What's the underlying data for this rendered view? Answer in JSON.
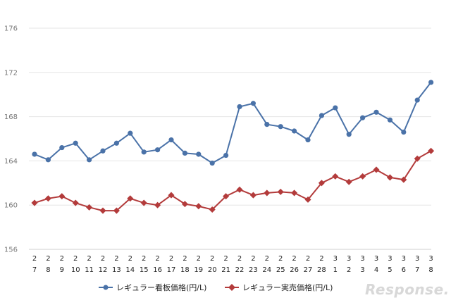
{
  "chart_data": {
    "type": "line",
    "title": "",
    "xlabel": "",
    "ylabel": "",
    "ylim": [
      156,
      176
    ],
    "yticks": [
      156,
      160,
      164,
      168,
      172,
      176
    ],
    "grid": "horizontal",
    "legend_position": "bottom",
    "categories": [
      {
        "month": "2",
        "day": "7"
      },
      {
        "month": "2",
        "day": "8"
      },
      {
        "month": "2",
        "day": "9"
      },
      {
        "month": "2",
        "day": "10"
      },
      {
        "month": "2",
        "day": "11"
      },
      {
        "month": "2",
        "day": "12"
      },
      {
        "month": "2",
        "day": "13"
      },
      {
        "month": "2",
        "day": "14"
      },
      {
        "month": "2",
        "day": "15"
      },
      {
        "month": "2",
        "day": "16"
      },
      {
        "month": "2",
        "day": "17"
      },
      {
        "month": "2",
        "day": "18"
      },
      {
        "month": "2",
        "day": "19"
      },
      {
        "month": "2",
        "day": "20"
      },
      {
        "month": "2",
        "day": "21"
      },
      {
        "month": "2",
        "day": "22"
      },
      {
        "month": "2",
        "day": "23"
      },
      {
        "month": "2",
        "day": "24"
      },
      {
        "month": "2",
        "day": "25"
      },
      {
        "month": "2",
        "day": "26"
      },
      {
        "month": "2",
        "day": "27"
      },
      {
        "month": "2",
        "day": "28"
      },
      {
        "month": "3",
        "day": "1"
      },
      {
        "month": "3",
        "day": "2"
      },
      {
        "month": "3",
        "day": "3"
      },
      {
        "month": "3",
        "day": "4"
      },
      {
        "month": "3",
        "day": "5"
      },
      {
        "month": "3",
        "day": "6"
      },
      {
        "month": "3",
        "day": "7"
      },
      {
        "month": "3",
        "day": "8"
      }
    ],
    "series": [
      {
        "name": "レギュラー看板価格(円/L)",
        "color": "#4a72a8",
        "marker": "circle",
        "values": [
          164.6,
          164.1,
          165.2,
          165.6,
          164.1,
          164.9,
          165.6,
          166.5,
          164.8,
          165.0,
          165.9,
          164.7,
          164.6,
          163.8,
          164.5,
          168.9,
          169.2,
          167.3,
          167.1,
          166.7,
          165.9,
          168.1,
          168.8,
          166.4,
          167.9,
          168.4,
          167.7,
          166.6,
          169.5,
          171.1
        ]
      },
      {
        "name": "レギュラー実売価格(円/L)",
        "color": "#b33b3b",
        "marker": "diamond",
        "values": [
          160.2,
          160.6,
          160.8,
          160.2,
          159.8,
          159.5,
          159.5,
          160.6,
          160.2,
          160.0,
          160.9,
          160.1,
          159.9,
          159.6,
          160.8,
          161.4,
          160.9,
          161.1,
          161.2,
          161.1,
          160.5,
          162.0,
          162.6,
          162.1,
          162.6,
          163.2,
          162.5,
          162.3,
          164.2,
          164.9
        ]
      }
    ]
  },
  "watermark": "Response."
}
